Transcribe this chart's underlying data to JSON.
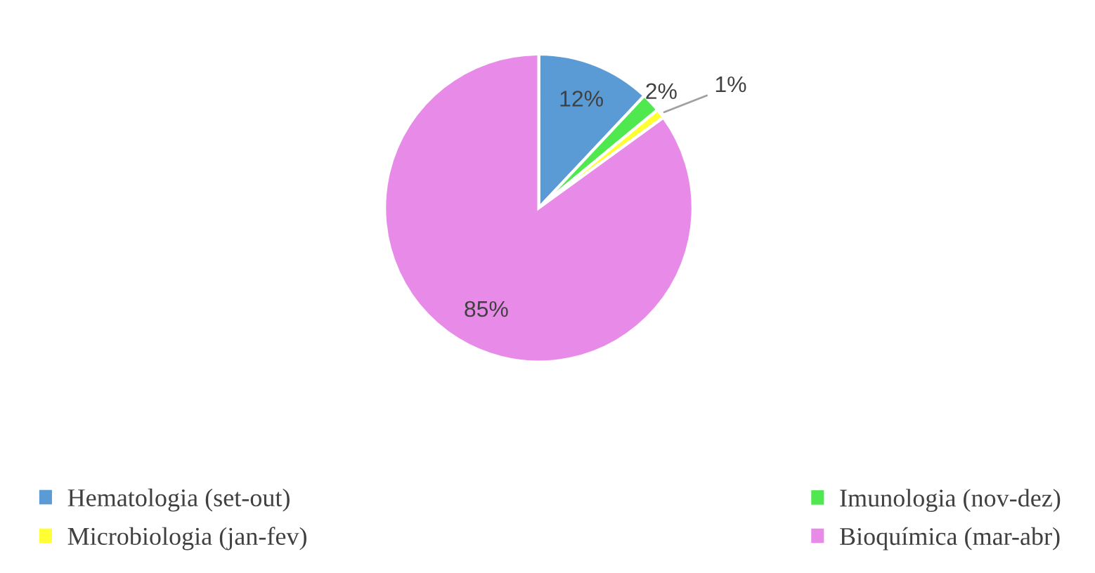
{
  "chart_data": {
    "type": "pie",
    "categories": [
      "Hematologia (set-out)",
      "Imunologia (nov-dez)",
      "Microbiologia (jan-fev)",
      "Bioquímica (mar-abr)"
    ],
    "values": [
      12,
      2,
      1,
      85
    ],
    "colors": [
      "#5b9bd5",
      "#4fe84f",
      "#ffff33",
      "#e88be8"
    ],
    "value_labels": [
      "12%",
      "2%",
      "1%",
      "85%"
    ],
    "legend": "bottom"
  }
}
